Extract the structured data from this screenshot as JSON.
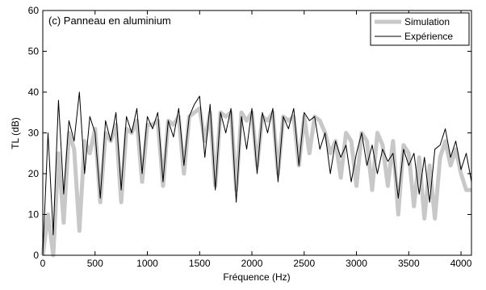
{
  "chart_data": {
    "type": "line",
    "title": "(c) Panneau en aluminium",
    "xlabel": "Fréquence (Hz)",
    "ylabel": "TL (dB)",
    "x": [
      0,
      50,
      100,
      150,
      200,
      250,
      300,
      350,
      400,
      450,
      500,
      550,
      600,
      650,
      700,
      750,
      800,
      850,
      900,
      950,
      1000,
      1050,
      1100,
      1150,
      1200,
      1250,
      1300,
      1350,
      1400,
      1450,
      1500,
      1550,
      1600,
      1650,
      1700,
      1750,
      1800,
      1850,
      1900,
      1950,
      2000,
      2050,
      2100,
      2150,
      2200,
      2250,
      2300,
      2350,
      2400,
      2450,
      2500,
      2550,
      2600,
      2650,
      2700,
      2750,
      2800,
      2850,
      2900,
      2950,
      3000,
      3050,
      3100,
      3150,
      3200,
      3250,
      3300,
      3350,
      3400,
      3450,
      3500,
      3550,
      3600,
      3650,
      3700,
      3750,
      3800,
      3850,
      3900,
      3950,
      4000,
      4050,
      4100
    ],
    "series": [
      {
        "name": "Simulation",
        "color": "#c8c8c8",
        "width": 5,
        "values": [
          0,
          10,
          0,
          25,
          8,
          30,
          26,
          6,
          28,
          25,
          31,
          13,
          30,
          28,
          32,
          13,
          31,
          30,
          33,
          18,
          32,
          32,
          33,
          17,
          33,
          32,
          34,
          20,
          34,
          35,
          36,
          28,
          35,
          17,
          35,
          34,
          35,
          16,
          35,
          33,
          35,
          22,
          34,
          33,
          35,
          20,
          34,
          33,
          34,
          22,
          34,
          25,
          34,
          33,
          30,
          25,
          28,
          19,
          30,
          28,
          17,
          30,
          28,
          16,
          30,
          27,
          17,
          28,
          10,
          27,
          25,
          12,
          24,
          9,
          22,
          9,
          24,
          28,
          22,
          26,
          20,
          16,
          16
        ]
      },
      {
        "name": "Expérience",
        "color": "#000000",
        "width": 1,
        "values": [
          0,
          30,
          5,
          38,
          15,
          33,
          28,
          40,
          20,
          34,
          30,
          14,
          33,
          28,
          35,
          16,
          34,
          30,
          36,
          20,
          34,
          31,
          35,
          18,
          33,
          29,
          36,
          22,
          34,
          37,
          39,
          24,
          37,
          16,
          35,
          30,
          36,
          13,
          34,
          26,
          36,
          20,
          35,
          30,
          36,
          18,
          34,
          31,
          36,
          22,
          35,
          33,
          34,
          26,
          30,
          20,
          28,
          24,
          27,
          18,
          25,
          30,
          22,
          27,
          20,
          26,
          23,
          25,
          14,
          26,
          22,
          25,
          15,
          24,
          13,
          26,
          27,
          31,
          24,
          28,
          21,
          25,
          18
        ]
      }
    ],
    "xlim": [
      0,
      4100
    ],
    "ylim": [
      0,
      60
    ],
    "xticks": [
      0,
      500,
      1000,
      1500,
      2000,
      2500,
      3000,
      3500,
      4000
    ],
    "yticks": [
      0,
      10,
      20,
      30,
      40,
      50,
      60
    ],
    "grid": false,
    "legend": "northeast"
  }
}
